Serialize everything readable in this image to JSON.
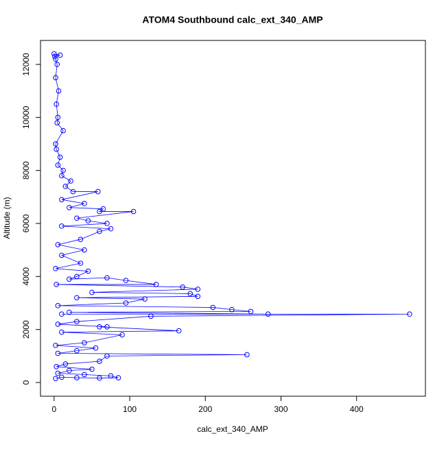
{
  "chart_data": {
    "type": "scatter",
    "line": true,
    "title": "ATOM4 Southbound calc_ext_340_AMP",
    "x_label": "calc_ext_340_AMP",
    "y_label": "Altitude (m)",
    "color": "#0000ff",
    "xlim": [
      -18,
      491
    ],
    "ylim": [
      -517,
      12904
    ],
    "xticks": [
      0,
      100,
      200,
      300,
      400
    ],
    "yticks": [
      0,
      2000,
      4000,
      6000,
      8000,
      10000,
      12000
    ],
    "x": [
      2,
      10,
      30,
      60,
      85,
      75,
      40,
      5,
      20,
      50,
      3,
      15,
      60,
      70,
      255,
      5,
      30,
      55,
      2,
      40,
      90,
      10,
      165,
      60,
      70,
      5,
      30,
      128,
      470,
      10,
      283,
      20,
      260,
      235,
      210,
      5,
      95,
      120,
      30,
      190,
      180,
      50,
      190,
      170,
      3,
      135,
      95,
      70,
      20,
      30,
      45,
      2,
      35,
      10,
      40,
      5,
      35,
      60,
      75,
      10,
      70,
      45,
      30,
      105,
      60,
      65,
      20,
      40,
      10,
      58,
      25,
      15,
      22,
      10,
      12,
      5,
      8,
      3,
      2,
      12,
      4,
      5,
      3,
      6,
      2,
      4,
      1,
      8,
      0,
      2
    ],
    "values": [
      150,
      200,
      180,
      170,
      180,
      250,
      300,
      350,
      450,
      500,
      600,
      700,
      800,
      1000,
      1050,
      1100,
      1200,
      1300,
      1400,
      1500,
      1800,
      1900,
      1950,
      2100,
      2100,
      2200,
      2300,
      2500,
      2580,
      2580,
      2580,
      2650,
      2680,
      2750,
      2830,
      2900,
      3000,
      3150,
      3200,
      3250,
      3350,
      3400,
      3520,
      3600,
      3700,
      3700,
      3850,
      3950,
      3900,
      4000,
      4200,
      4300,
      4500,
      4800,
      5000,
      5200,
      5400,
      5700,
      5800,
      5900,
      6000,
      6100,
      6200,
      6450,
      6450,
      6550,
      6600,
      6750,
      6900,
      7200,
      7200,
      7400,
      7600,
      7800,
      8000,
      8200,
      8500,
      8800,
      9000,
      9500,
      9800,
      10000,
      10500,
      11000,
      11500,
      12000,
      12300,
      12350,
      12400,
      12200
    ]
  }
}
